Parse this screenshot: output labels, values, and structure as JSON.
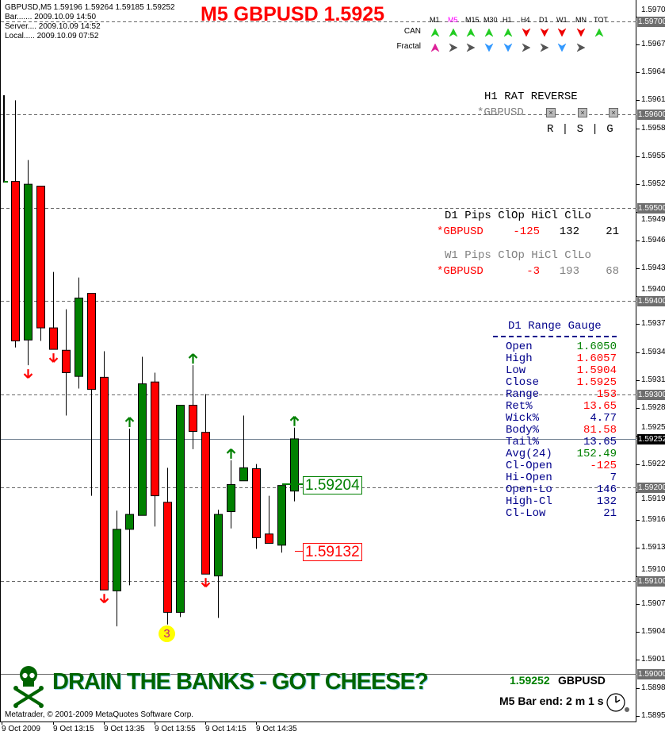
{
  "header": {
    "symbol_line": "GBPUSD,M5  1.59196 1.59264 1.59185 1.59252",
    "bar_time": "Bar....... 2009.10.09 14:50",
    "server_time": "Server.... 2009.10.09 14:52",
    "local_time": "Local..... 2009.10.09 07:52",
    "title": "M5 GBPUSD 1.5925"
  },
  "mtf": {
    "timeframes": [
      "M1",
      "M5",
      "M15",
      "M30",
      "H1",
      "H4",
      "D1",
      "W1",
      "MN",
      "TOT"
    ],
    "active_timeframe": "M5",
    "rows": [
      {
        "label": "CAN",
        "signals": [
          "up-green",
          "up-green",
          "up-green",
          "up-green",
          "up-green",
          "down-red",
          "down-red",
          "down-red",
          "down-red",
          "up-green"
        ]
      },
      {
        "label": "Fractal",
        "signals": [
          "up-pink",
          "right-gray",
          "right-gray",
          "down-blue",
          "down-blue",
          "right-gray",
          "right-gray",
          "down-blue",
          "right-gray"
        ]
      }
    ]
  },
  "rat": {
    "title": "H1 RAT REVERSE",
    "symbol": "*GBPUSD",
    "columns": "R | S | G"
  },
  "pips": {
    "d1_header": [
      "D1",
      "Pips",
      "ClOp",
      "HiCl",
      "ClLo"
    ],
    "d1_row": [
      "*GBPUSD",
      "-125",
      "132",
      "21"
    ],
    "w1_header": [
      "W1",
      "Pips",
      "ClOp",
      "HiCl",
      "ClLo"
    ],
    "w1_row": [
      "*GBPUSD",
      "-3",
      "193",
      "68"
    ]
  },
  "gauge": {
    "title": "D1 Range Gauge",
    "rows": [
      {
        "label": "Open",
        "value": "1.6050",
        "color": "#008000"
      },
      {
        "label": "High",
        "value": "1.6057",
        "color": "#ff0000"
      },
      {
        "label": "Low",
        "value": "1.5904",
        "color": "#ff0000"
      },
      {
        "label": "Close",
        "value": "1.5925",
        "color": "#ff0000"
      },
      {
        "label": "Range",
        "value": "153",
        "color": "#ff0000"
      },
      {
        "label": "Ret%",
        "value": "13.65",
        "color": "#ff0000"
      },
      {
        "label": "Wick%",
        "value": "4.77",
        "color": "#00008b"
      },
      {
        "label": "Body%",
        "value": "81.58",
        "color": "#ff0000"
      },
      {
        "label": "Tail%",
        "value": "13.65",
        "color": "#00008b"
      },
      {
        "label": "Avg(24)",
        "value": "152.49",
        "color": "#008000"
      },
      {
        "label": "Cl-Open",
        "value": "-125",
        "color": "#ff0000"
      },
      {
        "label": "Hi-Open",
        "value": "7",
        "color": "#00008b"
      },
      {
        "label": "Open-Lo",
        "value": "146",
        "color": "#00008b"
      },
      {
        "label": "High-Cl",
        "value": "132",
        "color": "#00008b"
      },
      {
        "label": "Cl-Low",
        "value": "21",
        "color": "#00008b"
      }
    ]
  },
  "price_labels": {
    "upper": "1.59204",
    "lower": "1.59132",
    "fractal_count": "3"
  },
  "footer": {
    "slogan": "DRAIN THE BANKS - GOT CHEESE?",
    "copyright": "Metatrader, © 2001-2009 MetaQuotes Software Corp.",
    "price": "1.59252",
    "symbol": "GBPUSD",
    "bar_end": "M5 Bar end: 2 m 1 s"
  },
  "axis": {
    "price_ticks": [
      "1.59705",
      "1.59675",
      "1.59645",
      "1.59615",
      "1.59585",
      "1.59555",
      "1.59525",
      "1.59495",
      "1.59465",
      "1.59435",
      "1.59405",
      "1.59375",
      "1.59345",
      "1.59315",
      "1.59285",
      "1.59255",
      "1.59225",
      "1.59195",
      "1.59165",
      "1.59135",
      "1.59105",
      "1.59075",
      "1.59045",
      "1.59015",
      "1.58985",
      "1.58955"
    ],
    "level_boxes": [
      "1.59700",
      "1.59600",
      "1.59500",
      "1.59400",
      "1.59300",
      "1.59200",
      "1.59100",
      "1.59000"
    ],
    "current_price": "1.59252",
    "time_labels": [
      "9 Oct 2009",
      "9 Oct 13:15",
      "9 Oct 13:35",
      "9 Oct 13:55",
      "9 Oct 14:15",
      "9 Oct 14:35"
    ]
  },
  "colors": {
    "bull": "#008000",
    "bear": "#ff0000",
    "grid": "#666666",
    "price_line": "#708090"
  },
  "chart_data": {
    "type": "candlestick",
    "timeframe": "M5",
    "first_bar": "2009.10.09 13:00",
    "ylim": [
      1.5894,
      1.5972
    ],
    "candles": [
      [
        1.59528,
        1.59615,
        1.5935,
        1.59357
      ],
      [
        1.59358,
        1.59551,
        1.59331,
        1.59525
      ],
      [
        1.59523,
        1.59523,
        1.59357,
        1.59371
      ],
      [
        1.59371,
        1.59431,
        1.59348,
        1.59348
      ],
      [
        1.59347,
        1.59391,
        1.59277,
        1.59323
      ],
      [
        1.59319,
        1.59425,
        1.59306,
        1.59403
      ],
      [
        1.59408,
        1.59408,
        1.59191,
        1.59305
      ],
      [
        1.59318,
        1.59346,
        1.5909,
        1.5909
      ],
      [
        1.59089,
        1.59175,
        1.59051,
        1.59155
      ],
      [
        1.59155,
        1.59263,
        1.59095,
        1.59171
      ],
      [
        1.5917,
        1.5934,
        1.5917,
        1.59311
      ],
      [
        1.59313,
        1.59323,
        1.59158,
        1.59191
      ],
      [
        1.59184,
        1.59221,
        1.59053,
        1.59066
      ],
      [
        1.59066,
        1.59288,
        1.59061,
        1.59288
      ],
      [
        1.59288,
        1.59331,
        1.59241,
        1.5926
      ],
      [
        1.59259,
        1.593,
        1.59107,
        1.59107
      ],
      [
        1.59105,
        1.59176,
        1.5906,
        1.59171
      ],
      [
        1.59174,
        1.59229,
        1.59156,
        1.59203
      ],
      [
        1.59207,
        1.59277,
        1.59207,
        1.59221
      ],
      [
        1.5922,
        1.59225,
        1.59134,
        1.59146
      ],
      [
        1.5915,
        1.59191,
        1.5914,
        1.5914
      ],
      [
        1.59138,
        1.59202,
        1.5913,
        1.59202
      ],
      [
        1.59196,
        1.59264,
        1.59185,
        1.59252
      ]
    ],
    "fractal_arrows": [
      {
        "bar": 1,
        "dir": "down"
      },
      {
        "bar": 3,
        "dir": "down"
      },
      {
        "bar": 7,
        "dir": "down"
      },
      {
        "bar": 15,
        "dir": "down"
      },
      {
        "bar": 9,
        "dir": "up"
      },
      {
        "bar": 14,
        "dir": "up"
      },
      {
        "bar": 17,
        "dir": "up"
      },
      {
        "bar": 22,
        "dir": "up"
      }
    ],
    "grid_levels": [
      1.597,
      1.596,
      1.595,
      1.594,
      1.593,
      1.592,
      1.591,
      1.59
    ]
  }
}
